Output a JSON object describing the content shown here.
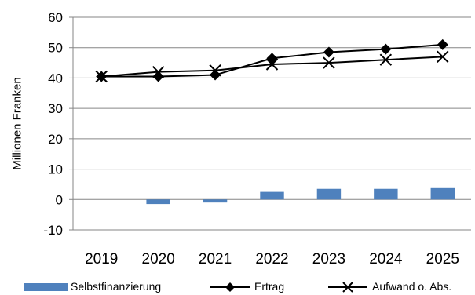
{
  "chart_data": {
    "type": "bar+line",
    "categories": [
      "2019",
      "2020",
      "2021",
      "2022",
      "2023",
      "2024",
      "2025"
    ],
    "ylabel": "Millionen Franken",
    "ylim": [
      -10,
      60
    ],
    "yticks": [
      "-10",
      "0",
      "10",
      "20",
      "30",
      "40",
      "50",
      "60"
    ],
    "grid": true,
    "legend_position": "bottom",
    "series": [
      {
        "name": "Selbstfinanzierung",
        "kind": "bar",
        "color": "#4f81bd",
        "values": [
          0,
          -1.5,
          -1.0,
          2.5,
          3.5,
          3.5,
          4.0
        ]
      },
      {
        "name": "Ertrag",
        "kind": "line",
        "marker": "diamond",
        "color": "#000000",
        "values": [
          40.5,
          40.5,
          41.0,
          46.5,
          48.5,
          49.5,
          51.0
        ]
      },
      {
        "name": "Aufwand o. Abs.",
        "kind": "line",
        "marker": "x",
        "color": "#000000",
        "values": [
          40.5,
          42.0,
          42.5,
          44.5,
          45.0,
          46.0,
          47.0
        ]
      }
    ]
  }
}
